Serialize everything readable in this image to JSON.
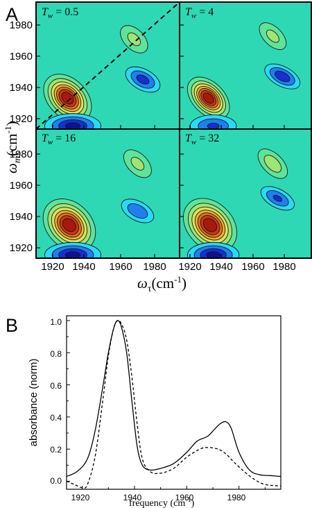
{
  "panel_a": {
    "letter": "A",
    "ylabel_main": "ω",
    "ylabel_sub": "m",
    "ylabel_unit": "(cm",
    "ylabel_sup": "-1",
    "ylabel_close": ")",
    "xlabel_main": "ω",
    "xlabel_sub": "τ",
    "xlabel_unit": "(cm",
    "xlabel_sup": "-1",
    "xlabel_close": ")",
    "tw_symbol": "T",
    "tw_sub": "w",
    "subplots": [
      {
        "tw_value": " = 0.5"
      },
      {
        "tw_value": " = 4"
      },
      {
        "tw_value": " = 16"
      },
      {
        "tw_value": " = 32"
      }
    ],
    "y_ticks": [
      "1980",
      "1960",
      "1940",
      "1920"
    ],
    "x_ticks": [
      "1920",
      "1940",
      "1960",
      "1980"
    ]
  },
  "panel_b": {
    "letter": "B",
    "ylabel": "absorbance (norm)",
    "xlabel": "frequency (cm",
    "xlabel_sup": "-1",
    "xlabel_close": ")",
    "y_ticks": [
      "1.0",
      "0.8",
      "0.6",
      "0.4",
      "0.2",
      "0.0"
    ],
    "x_ticks": [
      "1920",
      "1940",
      "1960",
      "1980"
    ]
  },
  "colors": {
    "background_level": "#2fd8b4",
    "contour_line": "#1a1a1a",
    "positive_levels": [
      "#5fe39a",
      "#9ee574",
      "#d9e25a",
      "#f0b030",
      "#e07020",
      "#c83814",
      "#a8180c"
    ],
    "negative_levels": [
      "#2ad9f5",
      "#1f7ff0",
      "#1530d0",
      "#0a1490"
    ]
  },
  "chart_data": [
    {
      "type": "heatmap",
      "title": "T_w = 0.5",
      "xlabel": "ω_τ (cm-1)",
      "ylabel": "ω_m (cm-1)",
      "xlim": [
        1914,
        1996
      ],
      "ylim": [
        1912,
        1994
      ],
      "features": [
        {
          "sign": "positive",
          "center": [
            1932,
            1932
          ],
          "peak": 1.0,
          "shape": "elongated along diagonal"
        },
        {
          "sign": "positive",
          "center": [
            1970,
            1970
          ],
          "peak": 0.25
        },
        {
          "sign": "negative",
          "center": [
            1975,
            1944
          ],
          "peak": -0.45
        },
        {
          "sign": "negative",
          "center": [
            1935,
            1914
          ],
          "peak": -0.6
        }
      ],
      "diagonal_line": true
    },
    {
      "type": "heatmap",
      "title": "T_w = 4",
      "xlabel": "ω_τ (cm-1)",
      "ylabel": "ω_m (cm-1)",
      "xlim": [
        1914,
        1996
      ],
      "ylim": [
        1912,
        1994
      ],
      "features": [
        {
          "sign": "positive",
          "center": [
            1932,
            1932
          ],
          "peak": 1.0
        },
        {
          "sign": "positive",
          "center": [
            1972,
            1972
          ],
          "peak": 0.25
        },
        {
          "sign": "negative",
          "center": [
            1978,
            1946
          ],
          "peak": -0.5
        },
        {
          "sign": "negative",
          "center": [
            1935,
            1914
          ],
          "peak": -0.4
        }
      ]
    },
    {
      "type": "heatmap",
      "title": "T_w = 16",
      "xlabel": "ω_τ (cm-1)",
      "ylabel": "ω_m (cm-1)",
      "xlim": [
        1914,
        1996
      ],
      "ylim": [
        1912,
        1994
      ],
      "features": [
        {
          "sign": "positive",
          "center": [
            1933,
            1933
          ],
          "peak": 1.0
        },
        {
          "sign": "positive",
          "center": [
            1972,
            1972
          ],
          "peak": 0.25
        },
        {
          "sign": "negative",
          "center": [
            1972,
            1942
          ],
          "peak": -0.35
        },
        {
          "sign": "negative",
          "center": [
            1935,
            1914
          ],
          "peak": -0.6
        }
      ]
    },
    {
      "type": "heatmap",
      "title": "T_w = 32",
      "xlabel": "ω_τ (cm-1)",
      "ylabel": "ω_m (cm-1)",
      "xlim": [
        1914,
        1996
      ],
      "ylim": [
        1912,
        1994
      ],
      "features": [
        {
          "sign": "positive",
          "center": [
            1933,
            1933
          ],
          "peak": 1.0
        },
        {
          "sign": "positive",
          "center": [
            1972,
            1972
          ],
          "peak": 0.3
        },
        {
          "sign": "negative",
          "center": [
            1975,
            1950
          ],
          "peak": -0.4
        },
        {
          "sign": "negative",
          "center": [
            1935,
            1914
          ],
          "peak": -0.6
        }
      ]
    },
    {
      "type": "line",
      "xlabel": "frequency (cm-1)",
      "ylabel": "absorbance (norm)",
      "xlim": [
        1914,
        1996
      ],
      "ylim": [
        -0.05,
        1.03
      ],
      "x_ticks": [
        1920,
        1940,
        1960,
        1980
      ],
      "y_ticks": [
        0.0,
        0.2,
        0.4,
        0.6,
        0.8,
        1.0
      ],
      "series": [
        {
          "style": "solid",
          "x": [
            1914,
            1918,
            1922,
            1925,
            1928,
            1930,
            1932,
            1933.5,
            1935,
            1937,
            1939,
            1941,
            1943,
            1946,
            1950,
            1955,
            1960,
            1964,
            1968,
            1971,
            1973,
            1975,
            1977,
            1980,
            1984,
            1988,
            1992,
            1996
          ],
          "y": [
            0.03,
            0.06,
            0.14,
            0.32,
            0.6,
            0.8,
            0.95,
            1.0,
            0.96,
            0.8,
            0.5,
            0.22,
            0.1,
            0.07,
            0.08,
            0.11,
            0.18,
            0.25,
            0.28,
            0.33,
            0.36,
            0.37,
            0.33,
            0.18,
            0.07,
            0.04,
            0.035,
            0.03
          ]
        },
        {
          "style": "dashed",
          "x": [
            1914,
            1917,
            1920,
            1922,
            1925,
            1928,
            1930,
            1932,
            1933.5,
            1935,
            1937,
            1939,
            1941,
            1943,
            1946,
            1950,
            1955,
            1960,
            1965,
            1968,
            1972,
            1975,
            1978,
            1982,
            1986,
            1990,
            1996
          ],
          "y": [
            0.0,
            -0.02,
            -0.04,
            -0.02,
            0.16,
            0.52,
            0.78,
            0.95,
            1.0,
            0.98,
            0.88,
            0.65,
            0.36,
            0.14,
            0.06,
            0.05,
            0.08,
            0.15,
            0.2,
            0.21,
            0.2,
            0.17,
            0.12,
            0.06,
            0.01,
            -0.02,
            -0.03
          ]
        }
      ]
    }
  ]
}
